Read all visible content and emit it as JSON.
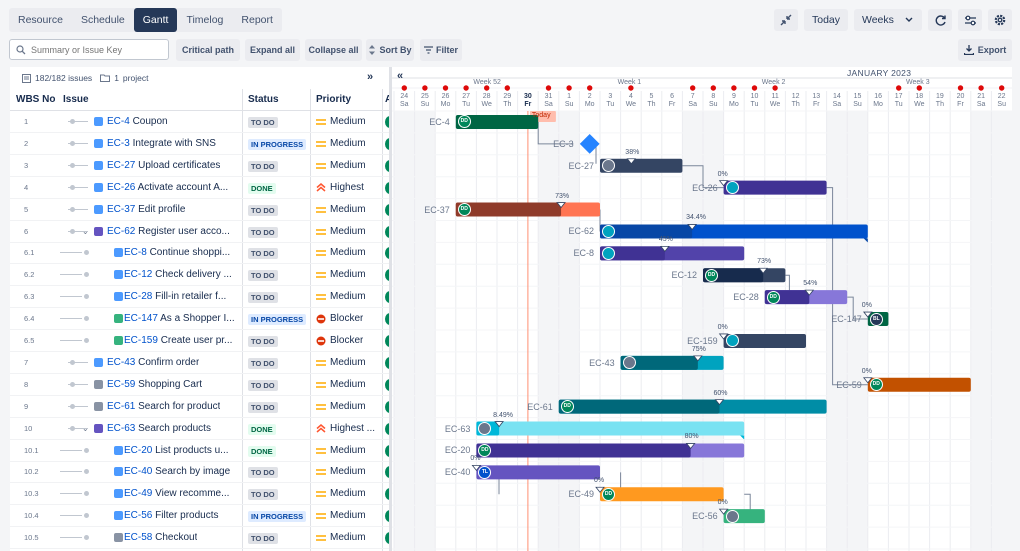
{
  "tabs": [
    "Resource",
    "Schedule",
    "Gantt",
    "Timelog",
    "Report"
  ],
  "top_right": {
    "today": "Today",
    "scale": "Weeks"
  },
  "toolbar": {
    "search_placeholder": "Summary or Issue Key",
    "critical_path": "Critical path",
    "expand_all": "Expand all",
    "collapse_all": "Collapse all",
    "sort_by": "Sort By",
    "filter": "Filter",
    "export": "Export"
  },
  "summary": {
    "issues": "182/182 issues",
    "projects": "1",
    "project_label": "project"
  },
  "columns": {
    "wbs": "WBS No",
    "issue": "Issue",
    "status": "Status",
    "priority": "Priority"
  },
  "rows": [
    {
      "wbs": "1",
      "key": "EC-4",
      "summary": "Coupon",
      "status": "TO DO",
      "priority": "Medium"
    },
    {
      "wbs": "2",
      "key": "EC-3",
      "summary": "Integrate with SNS",
      "status": "IN PROGRESS",
      "priority": "Medium"
    },
    {
      "wbs": "3",
      "key": "EC-27",
      "summary": "Upload certificates",
      "status": "TO DO",
      "priority": "Medium"
    },
    {
      "wbs": "4",
      "key": "EC-26",
      "summary": "Activate account A...",
      "status": "DONE",
      "priority": "Highest"
    },
    {
      "wbs": "5",
      "key": "EC-37",
      "summary": "Edit profile",
      "status": "TO DO",
      "priority": "Medium"
    },
    {
      "wbs": "6",
      "key": "EC-62",
      "summary": "Register user acco...",
      "status": "TO DO",
      "priority": "Medium"
    },
    {
      "wbs": "6.1",
      "key": "EC-8",
      "summary": "Continue shoppi...",
      "status": "TO DO",
      "priority": "Medium"
    },
    {
      "wbs": "6.2",
      "key": "EC-12",
      "summary": "Check delivery ...",
      "status": "TO DO",
      "priority": "Medium"
    },
    {
      "wbs": "6.3",
      "key": "EC-28",
      "summary": "Fill-in retailer f...",
      "status": "TO DO",
      "priority": "Medium"
    },
    {
      "wbs": "6.4",
      "key": "EC-147",
      "summary": "As a Shopper I...",
      "status": "IN PROGRESS",
      "priority": "Blocker"
    },
    {
      "wbs": "6.5",
      "key": "EC-159",
      "summary": "Create user pr...",
      "status": "TO DO",
      "priority": "Blocker"
    },
    {
      "wbs": "7",
      "key": "EC-43",
      "summary": "Confirm order",
      "status": "TO DO",
      "priority": "Medium"
    },
    {
      "wbs": "8",
      "key": "EC-59",
      "summary": "Shopping Cart",
      "status": "TO DO",
      "priority": "Medium"
    },
    {
      "wbs": "9",
      "key": "EC-61",
      "summary": "Search for product",
      "status": "TO DO",
      "priority": "Medium"
    },
    {
      "wbs": "10",
      "key": "EC-63",
      "summary": "Search products",
      "status": "DONE",
      "priority": "Highest ..."
    },
    {
      "wbs": "10.1",
      "key": "EC-20",
      "summary": "List products u...",
      "status": "DONE",
      "priority": "Medium"
    },
    {
      "wbs": "10.2",
      "key": "EC-40",
      "summary": "Search by image",
      "status": "TO DO",
      "priority": "Medium"
    },
    {
      "wbs": "10.3",
      "key": "EC-49",
      "summary": "View recomme...",
      "status": "TO DO",
      "priority": "Medium"
    },
    {
      "wbs": "10.4",
      "key": "EC-56",
      "summary": "Filter products",
      "status": "IN PROGRESS",
      "priority": "Medium"
    },
    {
      "wbs": "10.5",
      "key": "EC-58",
      "summary": "Checkout",
      "status": "TO DO",
      "priority": "Medium"
    }
  ],
  "timeline": {
    "month": "JANUARY 2023",
    "weeks": [
      "Week 52",
      "Week 1",
      "Week 2",
      "Week 3"
    ],
    "days": [
      {
        "n": "24",
        "d": "Sa"
      },
      {
        "n": "25",
        "d": "Su"
      },
      {
        "n": "26",
        "d": "Mo"
      },
      {
        "n": "27",
        "d": "Tu"
      },
      {
        "n": "28",
        "d": "We"
      },
      {
        "n": "29",
        "d": "Th"
      },
      {
        "n": "30",
        "d": "Fr"
      },
      {
        "n": "31",
        "d": "Sa"
      },
      {
        "n": "1",
        "d": "Su"
      },
      {
        "n": "2",
        "d": "Mo"
      },
      {
        "n": "3",
        "d": "Tu"
      },
      {
        "n": "4",
        "d": "We"
      },
      {
        "n": "5",
        "d": "Th"
      },
      {
        "n": "6",
        "d": "Fr"
      },
      {
        "n": "7",
        "d": "Sa"
      },
      {
        "n": "8",
        "d": "Su"
      },
      {
        "n": "9",
        "d": "Mo"
      },
      {
        "n": "10",
        "d": "Tu"
      },
      {
        "n": "11",
        "d": "We"
      },
      {
        "n": "12",
        "d": "Th"
      },
      {
        "n": "13",
        "d": "Fr"
      },
      {
        "n": "14",
        "d": "Sa"
      },
      {
        "n": "15",
        "d": "Su"
      },
      {
        "n": "16",
        "d": "Mo"
      },
      {
        "n": "17",
        "d": "Tu"
      },
      {
        "n": "18",
        "d": "We"
      },
      {
        "n": "19",
        "d": "Th"
      },
      {
        "n": "20",
        "d": "Fr"
      },
      {
        "n": "21",
        "d": "Sa"
      },
      {
        "n": "22",
        "d": "Su"
      }
    ],
    "today_label": "Today",
    "bars": [
      {
        "key": "EC-4",
        "start": "2022-12-27",
        "end": "2022-12-30",
        "color": "#006644",
        "avatar": "DD",
        "avatar_color": "#00875a"
      },
      {
        "key": "EC-3",
        "milestone": "2023-01-02",
        "color": "#2684ff"
      },
      {
        "key": "EC-27",
        "start": "2023-01-03",
        "end": "2023-01-06",
        "color": "#344563",
        "pct": "38%",
        "pct_value": 0.38,
        "avatar": "",
        "avatar_color": "#6b778c"
      },
      {
        "key": "EC-26",
        "start": "2023-01-09",
        "end": "2023-01-13",
        "color": "#403294",
        "pct": "0%",
        "pct_value": 0,
        "avatar": "",
        "avatar_color": "#00a3bf"
      },
      {
        "key": "EC-37",
        "start": "2022-12-27",
        "end": "2023-01-02",
        "color": "#8f3b2a",
        "color2": "#ff7452",
        "pct": "73%",
        "pct_value": 0.73,
        "avatar": "DD",
        "avatar_color": "#00875a"
      },
      {
        "key": "EC-62",
        "start": "2023-01-03",
        "end": "2023-01-15",
        "color": "#0747a6",
        "color2": "#0052cc",
        "pct": "34.4%",
        "pct_value": 0.344,
        "avatar": "",
        "avatar_color": "#00a3bf"
      },
      {
        "key": "EC-8",
        "start": "2023-01-03",
        "end": "2023-01-09",
        "color": "#403294",
        "color2": "#5243aa",
        "pct": "45%",
        "pct_value": 0.45,
        "avatar": "",
        "avatar_color": "#00a3bf"
      },
      {
        "key": "EC-12",
        "start": "2023-01-08",
        "end": "2023-01-11",
        "color": "#172b4d",
        "color2": "#344563",
        "pct": "73%",
        "pct_value": 0.73,
        "avatar": "DD",
        "avatar_color": "#00875a"
      },
      {
        "key": "EC-28",
        "start": "2023-01-11",
        "end": "2023-01-14",
        "color": "#403294",
        "color2": "#8777d9",
        "pct": "54%",
        "pct_value": 0.54,
        "avatar": "DD",
        "avatar_color": "#00875a"
      },
      {
        "key": "EC-147",
        "start": "2023-01-16",
        "end": "2023-01-16",
        "color": "#006644",
        "pct": "0%",
        "pct_value": 0,
        "avatar": "BL",
        "avatar_color": "#253858"
      },
      {
        "key": "EC-159",
        "start": "2023-01-09",
        "end": "2023-01-12",
        "color": "#344563",
        "pct": "0%",
        "pct_value": 0,
        "avatar": "",
        "avatar_color": "#00a3bf"
      },
      {
        "key": "EC-43",
        "start": "2023-01-04",
        "end": "2023-01-08",
        "color": "#00687a",
        "color2": "#00a3bf",
        "pct": "75%",
        "pct_value": 0.75,
        "avatar": "",
        "avatar_color": "#6b778c"
      },
      {
        "key": "EC-59",
        "start": "2023-01-16",
        "end": "2023-01-20",
        "color": "#ff8b00",
        "color2": "#c25100",
        "pct": "0%",
        "pct_value": 0,
        "avatar": "DD",
        "avatar_color": "#00875a"
      },
      {
        "key": "EC-61",
        "start": "2023-01-01",
        "end": "2023-01-13",
        "color": "#00687a",
        "color2": "#008da6",
        "pct": "60%",
        "pct_value": 0.6,
        "avatar": "DD",
        "avatar_color": "#00875a"
      },
      {
        "key": "EC-63",
        "start": "2022-12-28",
        "end": "2023-01-09",
        "color": "#00b8d9",
        "color2": "#79e2f2",
        "pct": "8.49%",
        "pct_value": 0.0849,
        "avatar": "",
        "avatar_color": "#6b778c"
      },
      {
        "key": "EC-20",
        "start": "2022-12-28",
        "end": "2023-01-09",
        "color": "#403294",
        "color2": "#8777d9",
        "pct": "80%",
        "pct_value": 0.8,
        "avatar": "DD",
        "avatar_color": "#00875a"
      },
      {
        "key": "EC-40",
        "start": "2022-12-28",
        "end": "2023-01-02",
        "color": "#403294",
        "color2": "#6554c0",
        "pct": "0%",
        "pct_value": 0,
        "avatar": "TL",
        "avatar_color": "#0052cc"
      },
      {
        "key": "EC-49",
        "start": "2023-01-03",
        "end": "2023-01-08",
        "color": "#ff8b00",
        "color2": "#ff991f",
        "pct": "0%",
        "pct_value": 0,
        "avatar": "DD",
        "avatar_color": "#00875a"
      },
      {
        "key": "EC-56",
        "start": "2023-01-09",
        "end": "2023-01-10",
        "color": "#00875a",
        "color2": "#36b37e",
        "pct": "0%",
        "pct_value": 0,
        "avatar": "",
        "avatar_color": "#6b778c"
      },
      {
        "key": "EC-58",
        "start": "",
        "end": "",
        "color": "#dfe1e6"
      }
    ]
  }
}
